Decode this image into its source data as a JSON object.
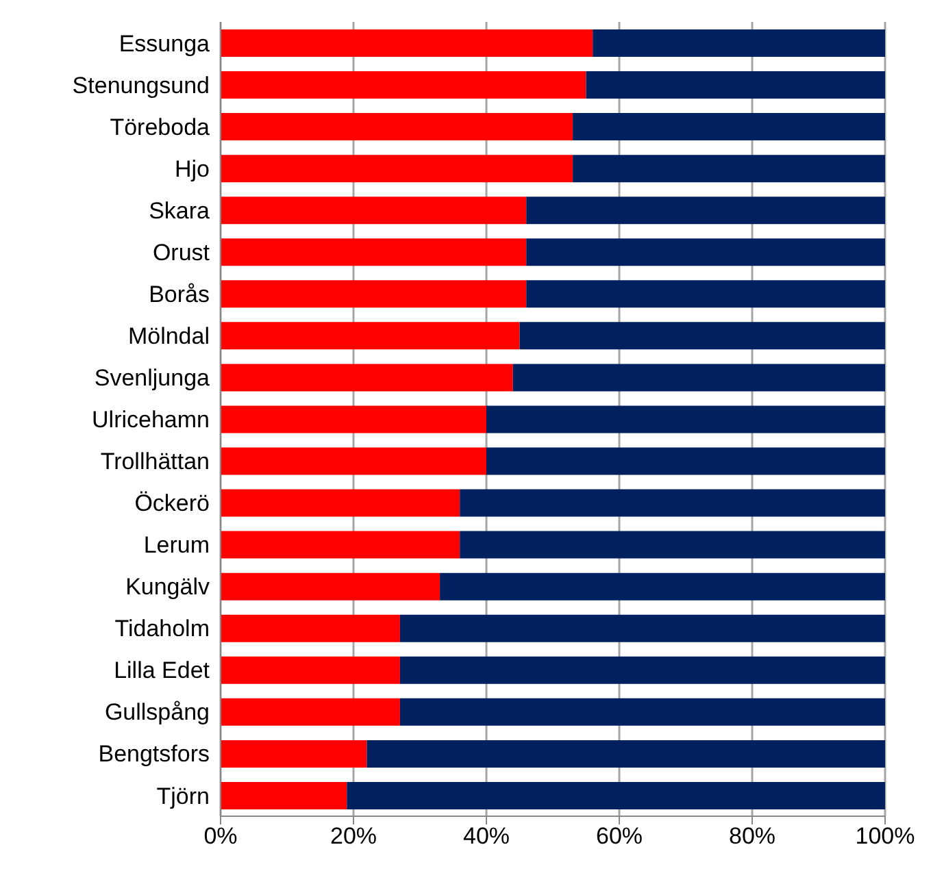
{
  "chart_data": {
    "type": "bar",
    "orientation": "horizontal",
    "stacked": true,
    "categories": [
      "Essunga",
      "Stenungsund",
      "Töreboda",
      "Hjo",
      "Skara",
      "Orust",
      "Borås",
      "Mölndal",
      "Svenljunga",
      "Ulricehamn",
      "Trollhättan",
      "Öckerö",
      "Lerum",
      "Kungälv",
      "Tidaholm",
      "Lilla Edet",
      "Gullspång",
      "Bengtsfors",
      "Tjörn"
    ],
    "series": [
      {
        "color": "#ff0000",
        "values": [
          56,
          55,
          53,
          53,
          46,
          46,
          46,
          45,
          44,
          40,
          40,
          36,
          36,
          33,
          27,
          27,
          27,
          22,
          19
        ]
      },
      {
        "color": "#002060",
        "values": [
          44,
          45,
          47,
          47,
          54,
          54,
          54,
          55,
          56,
          60,
          60,
          64,
          64,
          67,
          73,
          73,
          73,
          78,
          81
        ]
      }
    ],
    "xlim": [
      0,
      100
    ],
    "xticks": [
      {
        "value": 0,
        "label": "0%"
      },
      {
        "value": 20,
        "label": "20%"
      },
      {
        "value": 40,
        "label": "40%"
      },
      {
        "value": 60,
        "label": "60%"
      },
      {
        "value": 80,
        "label": "80%"
      },
      {
        "value": 100,
        "label": "100%"
      }
    ],
    "grid": "x",
    "legend": false
  }
}
